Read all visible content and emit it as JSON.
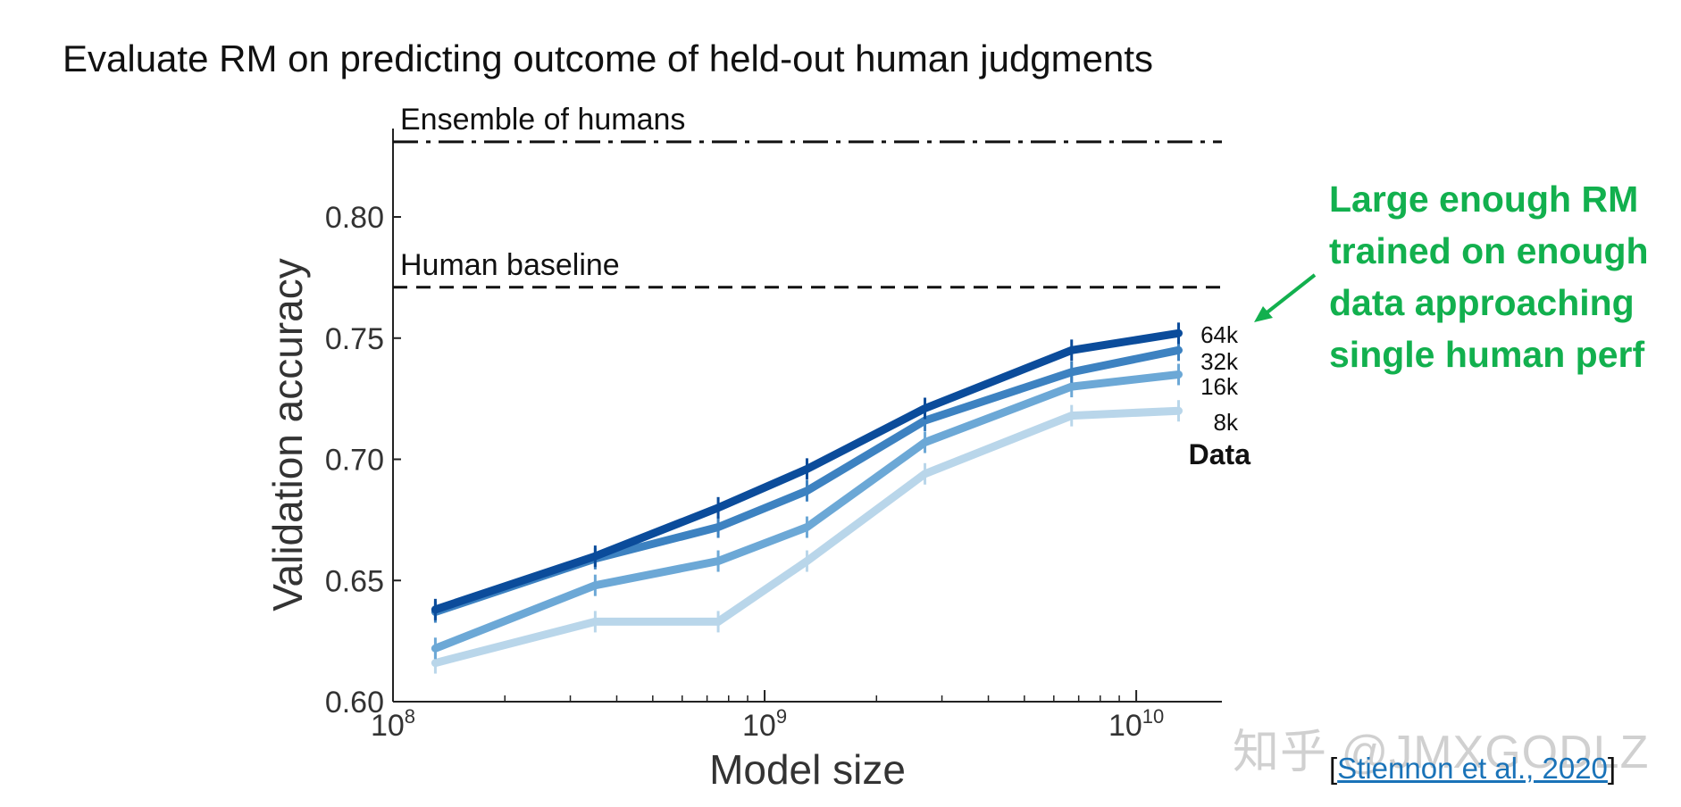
{
  "slide": {
    "title": "Evaluate RM on predicting outcome of held-out human judgments",
    "note_lines": [
      "Large enough RM",
      "trained on enough",
      "data approaching",
      "single human perf"
    ],
    "citation_open": "[",
    "citation_link": "Stiennon et al., 2020",
    "citation_close": "]",
    "watermark": "知乎 @JMXGODLZ"
  },
  "colors": {
    "note": "#12b04e",
    "series": [
      "#0b4c9b",
      "#3d82c1",
      "#6ca8d6",
      "#b9d6ea"
    ]
  },
  "chart_data": {
    "type": "line",
    "xlabel": "Model size",
    "ylabel": "Validation accuracy",
    "xscale": "log",
    "xlim": [
      100000000,
      17000000000
    ],
    "ylim": [
      0.6,
      0.835
    ],
    "yticks": [
      0.6,
      0.65,
      0.7,
      0.75,
      0.8
    ],
    "ytick_labels": [
      "0.60",
      "0.65",
      "0.70",
      "0.75",
      "0.80"
    ],
    "xticks": [
      {
        "value": 100000000,
        "base": "10",
        "exp": "8"
      },
      {
        "value": 1000000000,
        "base": "10",
        "exp": "9"
      },
      {
        "value": 10000000000,
        "base": "10",
        "exp": "10"
      }
    ],
    "x": [
      130000000,
      350000000,
      750000000,
      1300000000,
      2700000000,
      6700000000,
      13000000000
    ],
    "series": [
      {
        "name": "64k",
        "values": [
          0.638,
          0.66,
          0.68,
          0.696,
          0.721,
          0.745,
          0.752
        ]
      },
      {
        "name": "32k",
        "values": [
          0.637,
          0.659,
          0.672,
          0.687,
          0.716,
          0.736,
          0.745
        ]
      },
      {
        "name": "16k",
        "values": [
          0.622,
          0.648,
          0.658,
          0.672,
          0.707,
          0.73,
          0.735
        ]
      },
      {
        "name": "8k",
        "values": [
          0.616,
          0.633,
          0.633,
          0.658,
          0.694,
          0.718,
          0.72
        ]
      }
    ],
    "legend_title": "Data",
    "reference_lines": [
      {
        "label": "Ensemble of humans",
        "y": 0.831,
        "style": "dash-dot"
      },
      {
        "label": "Human baseline",
        "y": 0.771,
        "style": "dashed"
      }
    ],
    "grid": false
  }
}
